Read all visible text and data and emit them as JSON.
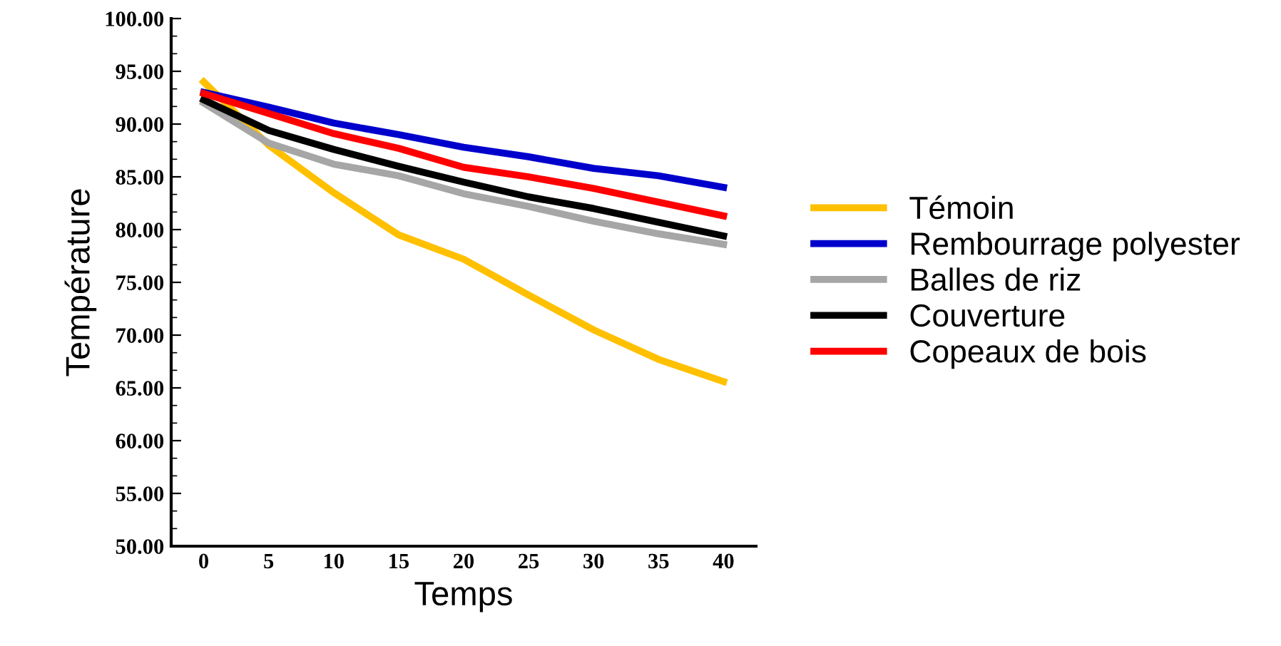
{
  "chart_data": {
    "type": "line",
    "xlabel": "Temps",
    "ylabel": "Température",
    "categories": [
      "0",
      "5",
      "10",
      "15",
      "20",
      "25",
      "30",
      "35",
      "40"
    ],
    "series": [
      {
        "name": "Témoin",
        "color": "#ffc000",
        "values": [
          94.0,
          88.0,
          83.5,
          79.5,
          77.2,
          73.8,
          70.5,
          67.7,
          65.6
        ]
      },
      {
        "name": "Rembourrage polyester",
        "color": "#0000cc",
        "values": [
          93.0,
          91.6,
          90.1,
          89.0,
          87.8,
          86.9,
          85.8,
          85.1,
          84.0
        ]
      },
      {
        "name": "Balles de riz",
        "color": "#a6a6a6",
        "values": [
          92.0,
          88.2,
          86.2,
          85.1,
          83.4,
          82.2,
          80.8,
          79.6,
          78.6
        ]
      },
      {
        "name": "Couverture",
        "color": "#000000",
        "values": [
          92.3,
          89.4,
          87.6,
          86.0,
          84.5,
          83.1,
          82.0,
          80.7,
          79.4
        ]
      },
      {
        "name": "Copeaux de bois",
        "color": "#ff0000",
        "values": [
          92.9,
          91.0,
          89.1,
          87.7,
          85.9,
          85.0,
          83.9,
          82.6,
          81.3
        ]
      }
    ],
    "ylim": [
      50,
      100
    ],
    "yticks": [
      {
        "value": 50,
        "label": "50.00"
      },
      {
        "value": 55,
        "label": "55.00"
      },
      {
        "value": 60,
        "label": "60.00"
      },
      {
        "value": 65,
        "label": "65.00"
      },
      {
        "value": 70,
        "label": "70.00"
      },
      {
        "value": 75,
        "label": "75.00"
      },
      {
        "value": 80,
        "label": "80.00"
      },
      {
        "value": 85,
        "label": "85.00"
      },
      {
        "value": 90,
        "label": "90.00"
      },
      {
        "value": 95,
        "label": "95.00"
      },
      {
        "value": 100,
        "label": "100.00"
      }
    ],
    "grid": false,
    "legend": "right",
    "marker": "none",
    "line_style": "solid"
  }
}
